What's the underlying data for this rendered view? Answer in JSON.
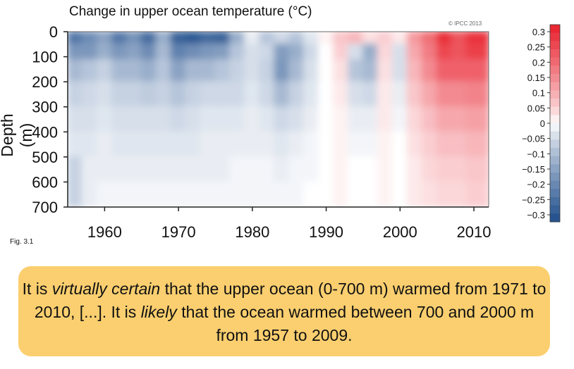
{
  "figure": {
    "copyright": "© IPCC 2013",
    "fig_label": "Fig. 3.1"
  },
  "chart_data": {
    "type": "heatmap",
    "title": "Change in upper ocean temperature (°C)",
    "ylabel": "Depth (m)",
    "xlabel": "",
    "xlim": [
      1955,
      2012
    ],
    "ylim": [
      0,
      700
    ],
    "x_ticks": [
      1960,
      1970,
      1980,
      1990,
      2000,
      2010
    ],
    "y_ticks": [
      0,
      100,
      200,
      300,
      400,
      500,
      600,
      700
    ],
    "colorbar": {
      "ticks": [
        "0.3",
        "0.25",
        "0.2",
        "0.15",
        "0.1",
        "0.05",
        "0",
        "−0.05",
        "−0.1",
        "−0.15",
        "−0.2",
        "−0.25",
        "−0.3"
      ],
      "range": [
        -0.3,
        0.3
      ],
      "colors": {
        "cold": "#1f4e8c",
        "neutral": "#ffffff",
        "warm": "#e8202c"
      }
    },
    "years": [
      1956,
      1958,
      1960,
      1962,
      1964,
      1966,
      1968,
      1970,
      1972,
      1974,
      1976,
      1978,
      1980,
      1982,
      1984,
      1986,
      1988,
      1990,
      1992,
      1994,
      1996,
      1998,
      2000,
      2002,
      2004,
      2006,
      2008,
      2010
    ],
    "depths": [
      25,
      75,
      150,
      250,
      350,
      450,
      550,
      650
    ],
    "anomaly": [
      [
        -0.22,
        -0.18,
        -0.14,
        -0.22,
        -0.17,
        -0.24,
        -0.12,
        -0.26,
        -0.28,
        -0.25,
        -0.26,
        -0.12,
        -0.02,
        -0.08,
        -0.05,
        -0.08,
        -0.03,
        0.01,
        0.06,
        0.08,
        0.03,
        0.05,
        0.02,
        0.12,
        0.18,
        0.28,
        0.22,
        0.27
      ],
      [
        -0.16,
        -0.16,
        -0.12,
        -0.16,
        -0.14,
        -0.18,
        -0.1,
        -0.2,
        -0.18,
        -0.16,
        -0.15,
        -0.08,
        -0.04,
        -0.05,
        -0.15,
        -0.12,
        -0.05,
        0.0,
        0.05,
        -0.04,
        -0.12,
        0.04,
        -0.04,
        0.1,
        0.16,
        0.24,
        0.22,
        0.25
      ],
      [
        -0.1,
        -0.08,
        -0.06,
        -0.1,
        -0.1,
        -0.12,
        -0.08,
        -0.14,
        -0.1,
        -0.1,
        -0.08,
        -0.06,
        -0.04,
        -0.06,
        -0.16,
        -0.1,
        -0.04,
        0.0,
        0.03,
        -0.08,
        -0.1,
        0.03,
        -0.04,
        0.08,
        0.14,
        0.2,
        0.2,
        0.2
      ],
      [
        -0.06,
        -0.05,
        -0.04,
        -0.06,
        -0.06,
        -0.07,
        -0.06,
        -0.08,
        -0.06,
        -0.05,
        -0.05,
        -0.05,
        -0.03,
        -0.05,
        -0.1,
        -0.06,
        -0.03,
        0.0,
        0.02,
        -0.04,
        -0.05,
        0.02,
        -0.02,
        0.06,
        0.1,
        0.14,
        0.14,
        0.15
      ],
      [
        -0.04,
        -0.04,
        -0.03,
        -0.04,
        -0.04,
        -0.04,
        -0.04,
        -0.05,
        -0.04,
        -0.03,
        -0.03,
        -0.03,
        -0.02,
        -0.03,
        -0.05,
        -0.04,
        -0.02,
        0.0,
        0.01,
        -0.02,
        -0.02,
        0.02,
        -0.01,
        0.04,
        0.07,
        0.1,
        0.1,
        0.11
      ],
      [
        -0.03,
        -0.03,
        -0.02,
        -0.03,
        -0.03,
        -0.03,
        -0.03,
        -0.03,
        -0.03,
        -0.02,
        -0.02,
        -0.02,
        -0.02,
        -0.02,
        -0.03,
        -0.02,
        -0.01,
        0.0,
        0.01,
        -0.01,
        -0.01,
        0.01,
        0.0,
        0.03,
        0.05,
        0.07,
        0.07,
        0.08
      ],
      [
        -0.06,
        -0.02,
        -0.02,
        -0.02,
        -0.02,
        -0.02,
        -0.02,
        -0.02,
        -0.02,
        -0.02,
        -0.02,
        -0.01,
        -0.01,
        -0.01,
        -0.02,
        -0.01,
        -0.01,
        0.0,
        0.01,
        0.0,
        0.0,
        0.01,
        0.0,
        0.02,
        0.04,
        0.05,
        0.05,
        0.06
      ],
      [
        -0.06,
        -0.02,
        -0.01,
        -0.01,
        -0.01,
        -0.01,
        -0.01,
        -0.01,
        -0.01,
        -0.01,
        -0.01,
        -0.01,
        -0.01,
        -0.01,
        -0.01,
        -0.01,
        0.0,
        0.0,
        0.01,
        0.0,
        0.0,
        0.01,
        0.0,
        0.02,
        0.03,
        0.04,
        0.04,
        0.05
      ]
    ]
  },
  "callout": {
    "part1": "It is ",
    "virtually_certain": "virtually certain",
    "part2": " that the upper ocean (0-700 m) warmed from 1971 to 2010, [...]. It is ",
    "likely": "likely",
    "part3": " that the ocean warmed between 700 and 2000 m from 1957 to 2009."
  }
}
